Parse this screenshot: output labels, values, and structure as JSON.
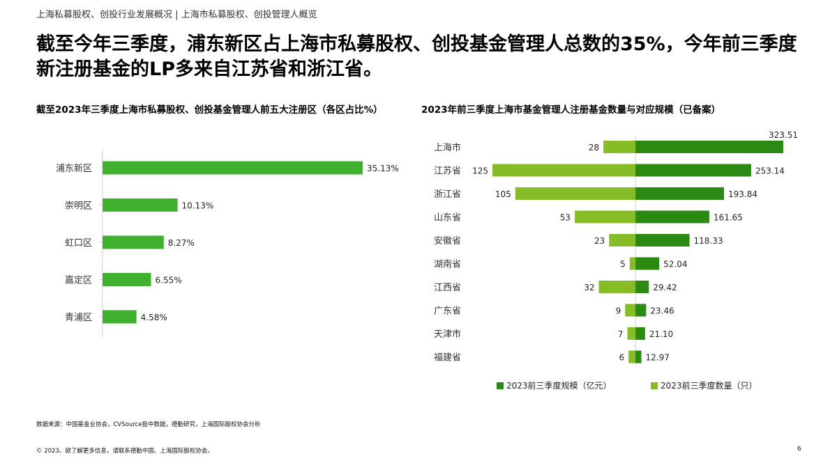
{
  "header": {
    "breadcrumb": "上海私募股权、创投行业发展概况 | 上海市私募股权、创投管理人概览",
    "headline": "截至今年三季度，浦东新区占上海市私募股权、创投基金管理人总数的35%，今年前三季度新注册基金的LP多来自江苏省和浙江省。"
  },
  "colors": {
    "dark_green": "#2a8a12",
    "light_green": "#86bc25",
    "bar_green": "#3fb12e"
  },
  "chart_data": [
    {
      "type": "bar",
      "orientation": "horizontal",
      "title": "截至2023年三季度上海市私募股权、创投基金管理人前五大注册区（各区占比%）",
      "categories": [
        "浦东新区",
        "崇明区",
        "虹口区",
        "嘉定区",
        "青浦区"
      ],
      "values": [
        35.13,
        10.13,
        8.27,
        6.55,
        4.58
      ],
      "labels": [
        "35.13%",
        "10.13%",
        "8.27%",
        "6.55%",
        "4.58%"
      ],
      "unit": "%"
    },
    {
      "type": "bar",
      "orientation": "horizontal-diverging",
      "title": "2023年前三季度上海市基金管理人注册基金数量与对应规模（已备案）",
      "categories": [
        "上海市",
        "江苏省",
        "浙江省",
        "山东省",
        "安徽省",
        "湖南省",
        "江西省",
        "广东省",
        "天津市",
        "福建省"
      ],
      "series": [
        {
          "name": "2023前三季度规模（亿元）",
          "values": [
            323.51,
            253.14,
            193.84,
            161.65,
            118.33,
            52.04,
            29.42,
            23.46,
            21.1,
            12.97
          ],
          "labels": [
            "323.51",
            "253.14",
            "193.84",
            "161.65",
            "118.33",
            "52.04",
            "29.42",
            "23.46",
            "21.10",
            "12.97"
          ]
        },
        {
          "name": "2023前三季度数量（只）",
          "values": [
            28,
            125,
            105,
            53,
            23,
            5,
            32,
            9,
            7,
            6
          ],
          "labels": [
            "28",
            "125",
            "105",
            "53",
            "23",
            "5",
            "32",
            "9",
            "7",
            "6"
          ]
        }
      ],
      "legend_position": "bottom"
    }
  ],
  "footer": {
    "source": "数据来源：中国基金业协会，CVSource投中数据，德勤研究，上海国际股权协会分析",
    "copyright": "© 2023。欲了解更多信息，请联系德勤中国、上海国际股权协会。",
    "page_number": "6"
  }
}
